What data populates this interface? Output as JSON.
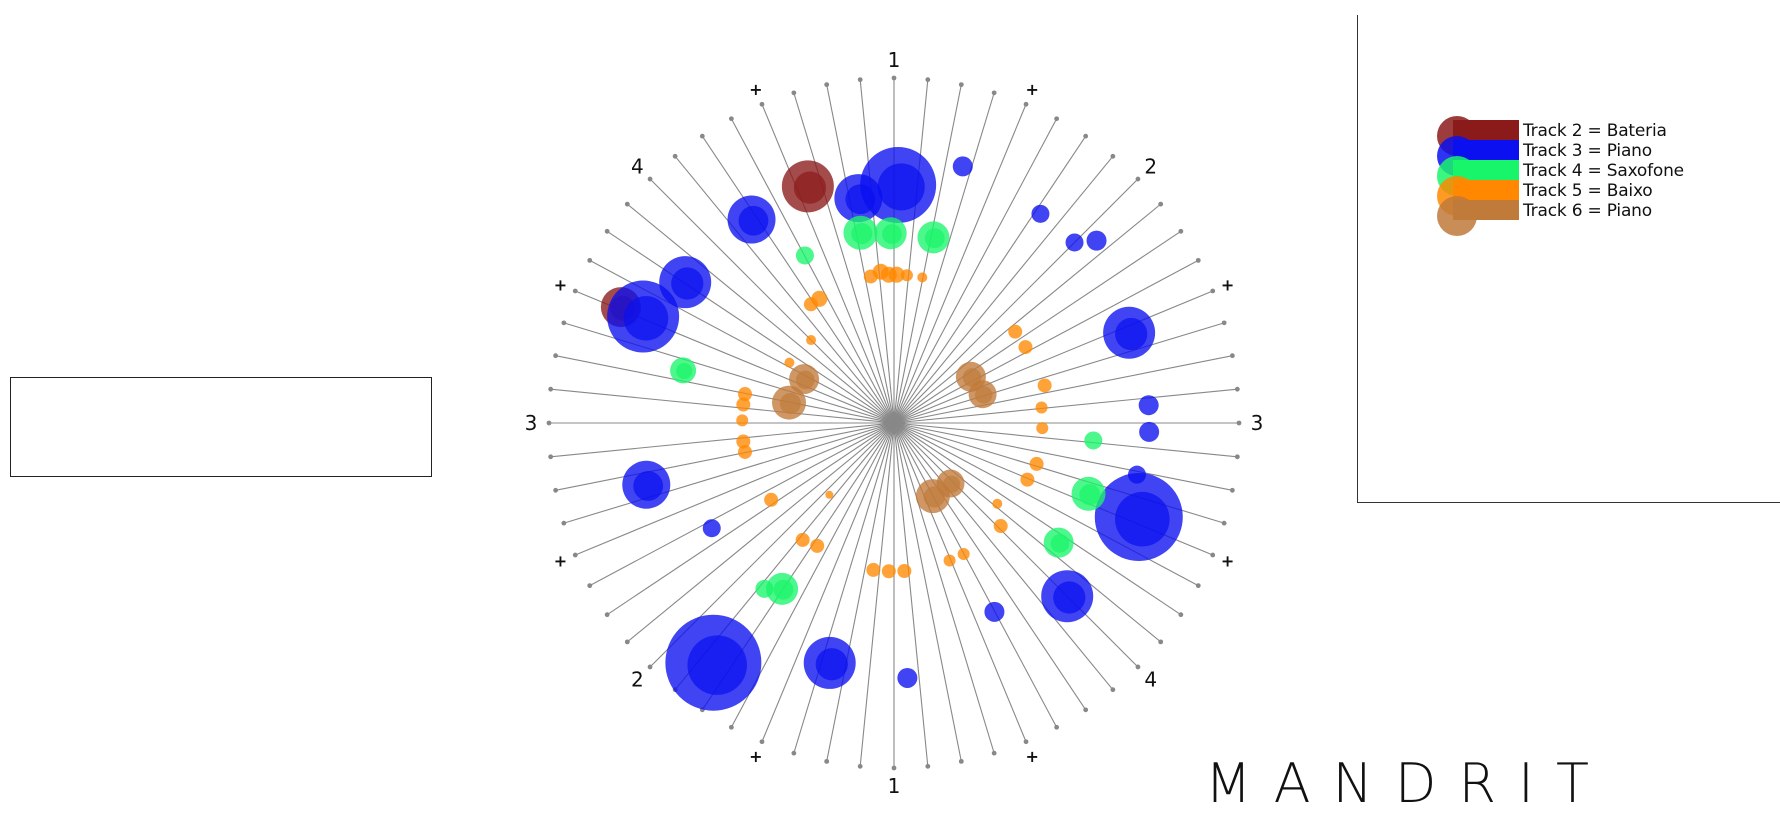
{
  "brand": {
    "name": "MANDRIT"
  },
  "text_box": {
    "value": ""
  },
  "legend": {
    "items": [
      {
        "label": "Track 2 = Bateria",
        "color": "#8B1A1A",
        "name": "track-2"
      },
      {
        "label": "Track 3 = Piano",
        "color": "#0A10F0",
        "name": "track-3"
      },
      {
        "label": "Track 4 = Saxofone",
        "color": "#19F56A",
        "name": "track-4"
      },
      {
        "label": "Track 5 = Baixo",
        "color": "#FF8800",
        "name": "track-5"
      },
      {
        "label": "Track 6 = Piano",
        "color": "#C07A3A",
        "name": "track-6"
      }
    ]
  },
  "wheel": {
    "spoke_count": 64,
    "spoke_color": "#888888",
    "beat_labels": [
      {
        "text": "1",
        "angle": 0
      },
      {
        "text": "2",
        "angle": 45
      },
      {
        "text": "3",
        "angle": 90
      },
      {
        "text": "4",
        "angle": 135
      },
      {
        "text": "1",
        "angle": 180
      },
      {
        "text": "2",
        "angle": 225
      },
      {
        "text": "3",
        "angle": 270
      },
      {
        "text": "4",
        "angle": 315
      }
    ],
    "plus_labels": [
      {
        "text": "+",
        "angle": 22.5
      },
      {
        "text": "+",
        "angle": 67.5
      },
      {
        "text": "+",
        "angle": 112.5
      },
      {
        "text": "+",
        "angle": 157.5
      },
      {
        "text": "+",
        "angle": 202.5
      },
      {
        "text": "+",
        "angle": 247.5
      },
      {
        "text": "+",
        "angle": 292.5
      },
      {
        "text": "+",
        "angle": 337.5
      }
    ],
    "notes": [
      {
        "track": 2,
        "angle": -20,
        "r": 0.73,
        "size": 26
      },
      {
        "track": 2,
        "angle": -67,
        "r": 0.86,
        "size": 20
      },
      {
        "track": 3,
        "angle": 1,
        "r": 0.69,
        "size": 38
      },
      {
        "track": 3,
        "angle": -9,
        "r": 0.66,
        "size": 24
      },
      {
        "track": 3,
        "angle": -35,
        "r": 0.72,
        "size": 24
      },
      {
        "track": 3,
        "angle": -56,
        "r": 0.73,
        "size": 26
      },
      {
        "track": 3,
        "angle": -67,
        "r": 0.79,
        "size": 36
      },
      {
        "track": 3,
        "angle": -104,
        "r": 0.74,
        "size": 24
      },
      {
        "track": 3,
        "angle": -143,
        "r": 0.87,
        "size": 48
      },
      {
        "track": 3,
        "angle": -165,
        "r": 0.72,
        "size": 26
      },
      {
        "track": 3,
        "angle": 177,
        "r": 0.74,
        "size": 10
      },
      {
        "track": 3,
        "angle": -120,
        "r": 0.61,
        "size": 9
      },
      {
        "track": 3,
        "angle": 15,
        "r": 0.77,
        "size": 10
      },
      {
        "track": 3,
        "angle": 35,
        "r": 0.74,
        "size": 9
      },
      {
        "track": 3,
        "angle": 45,
        "r": 0.74,
        "size": 9
      },
      {
        "track": 3,
        "angle": 48,
        "r": 0.79,
        "size": 10
      },
      {
        "track": 3,
        "angle": 69,
        "r": 0.73,
        "size": 26
      },
      {
        "track": 3,
        "angle": 86,
        "r": 0.74,
        "size": 10
      },
      {
        "track": 3,
        "angle": 92,
        "r": 0.74,
        "size": 10
      },
      {
        "track": 3,
        "angle": 102,
        "r": 0.72,
        "size": 9
      },
      {
        "track": 3,
        "angle": 111,
        "r": 0.76,
        "size": 44
      },
      {
        "track": 3,
        "angle": 135,
        "r": 0.71,
        "size": 26
      },
      {
        "track": 3,
        "angle": 152,
        "r": 0.62,
        "size": 10
      },
      {
        "track": 4,
        "angle": -10,
        "r": 0.56,
        "size": 17
      },
      {
        "track": 4,
        "angle": -1,
        "r": 0.55,
        "size": 16
      },
      {
        "track": 4,
        "angle": 12,
        "r": 0.55,
        "size": 16
      },
      {
        "track": 4,
        "angle": -28,
        "r": 0.55,
        "size": 9
      },
      {
        "track": 4,
        "angle": -76,
        "r": 0.63,
        "size": 13
      },
      {
        "track": 4,
        "angle": 95,
        "r": 0.58,
        "size": 9
      },
      {
        "track": 4,
        "angle": 110,
        "r": 0.6,
        "size": 17
      },
      {
        "track": 4,
        "angle": 126,
        "r": 0.59,
        "size": 15
      },
      {
        "track": 4,
        "angle": -146,
        "r": 0.58,
        "size": 16
      },
      {
        "track": 4,
        "angle": -142,
        "r": 0.61,
        "size": 9
      },
      {
        "track": 5,
        "angle": -5,
        "r": 0.44,
        "size": 8
      },
      {
        "track": 5,
        "angle": -2,
        "r": 0.43,
        "size": 8
      },
      {
        "track": 5,
        "angle": 1,
        "r": 0.43,
        "size": 8
      },
      {
        "track": 5,
        "angle": 5,
        "r": 0.43,
        "size": 6
      },
      {
        "track": 5,
        "angle": 11,
        "r": 0.43,
        "size": 5
      },
      {
        "track": 5,
        "angle": -9,
        "r": 0.43,
        "size": 7
      },
      {
        "track": 5,
        "angle": -31,
        "r": 0.42,
        "size": 8
      },
      {
        "track": 5,
        "angle": -35,
        "r": 0.42,
        "size": 7
      },
      {
        "track": 5,
        "angle": -45,
        "r": 0.34,
        "size": 5
      },
      {
        "track": 5,
        "angle": -60,
        "r": 0.35,
        "size": 5
      },
      {
        "track": 5,
        "angle": -79,
        "r": 0.44,
        "size": 7
      },
      {
        "track": 5,
        "angle": -83,
        "r": 0.44,
        "size": 7
      },
      {
        "track": 5,
        "angle": -89,
        "r": 0.44,
        "size": 6
      },
      {
        "track": 5,
        "angle": -97,
        "r": 0.44,
        "size": 7
      },
      {
        "track": 5,
        "angle": -101,
        "r": 0.44,
        "size": 7
      },
      {
        "track": 5,
        "angle": -122,
        "r": 0.42,
        "size": 7
      },
      {
        "track": 5,
        "angle": -142,
        "r": 0.43,
        "size": 7
      },
      {
        "track": 5,
        "angle": -148,
        "r": 0.42,
        "size": 7
      },
      {
        "track": 5,
        "angle": -138,
        "r": 0.28,
        "size": 4
      },
      {
        "track": 5,
        "angle": -172,
        "r": 0.43,
        "size": 7
      },
      {
        "track": 5,
        "angle": -178,
        "r": 0.43,
        "size": 7
      },
      {
        "track": 5,
        "angle": 176,
        "r": 0.43,
        "size": 7
      },
      {
        "track": 5,
        "angle": 158,
        "r": 0.43,
        "size": 6
      },
      {
        "track": 5,
        "angle": 152,
        "r": 0.43,
        "size": 6
      },
      {
        "track": 5,
        "angle": 134,
        "r": 0.43,
        "size": 7
      },
      {
        "track": 5,
        "angle": 128,
        "r": 0.38,
        "size": 5
      },
      {
        "track": 5,
        "angle": 113,
        "r": 0.42,
        "size": 7
      },
      {
        "track": 5,
        "angle": 106,
        "r": 0.43,
        "size": 7
      },
      {
        "track": 5,
        "angle": 92,
        "r": 0.43,
        "size": 6
      },
      {
        "track": 5,
        "angle": 84,
        "r": 0.43,
        "size": 6
      },
      {
        "track": 5,
        "angle": 76,
        "r": 0.45,
        "size": 7
      },
      {
        "track": 5,
        "angle": 60,
        "r": 0.44,
        "size": 7
      },
      {
        "track": 5,
        "angle": 53,
        "r": 0.44,
        "size": 7
      },
      {
        "track": 6,
        "angle": -64,
        "r": 0.29,
        "size": 15
      },
      {
        "track": 6,
        "angle": -79,
        "r": 0.31,
        "size": 17
      },
      {
        "track": 6,
        "angle": 59,
        "r": 0.26,
        "size": 15
      },
      {
        "track": 6,
        "angle": 72,
        "r": 0.27,
        "size": 14
      },
      {
        "track": 6,
        "angle": 152,
        "r": 0.24,
        "size": 17
      },
      {
        "track": 6,
        "angle": 137,
        "r": 0.24,
        "size": 14
      }
    ]
  }
}
